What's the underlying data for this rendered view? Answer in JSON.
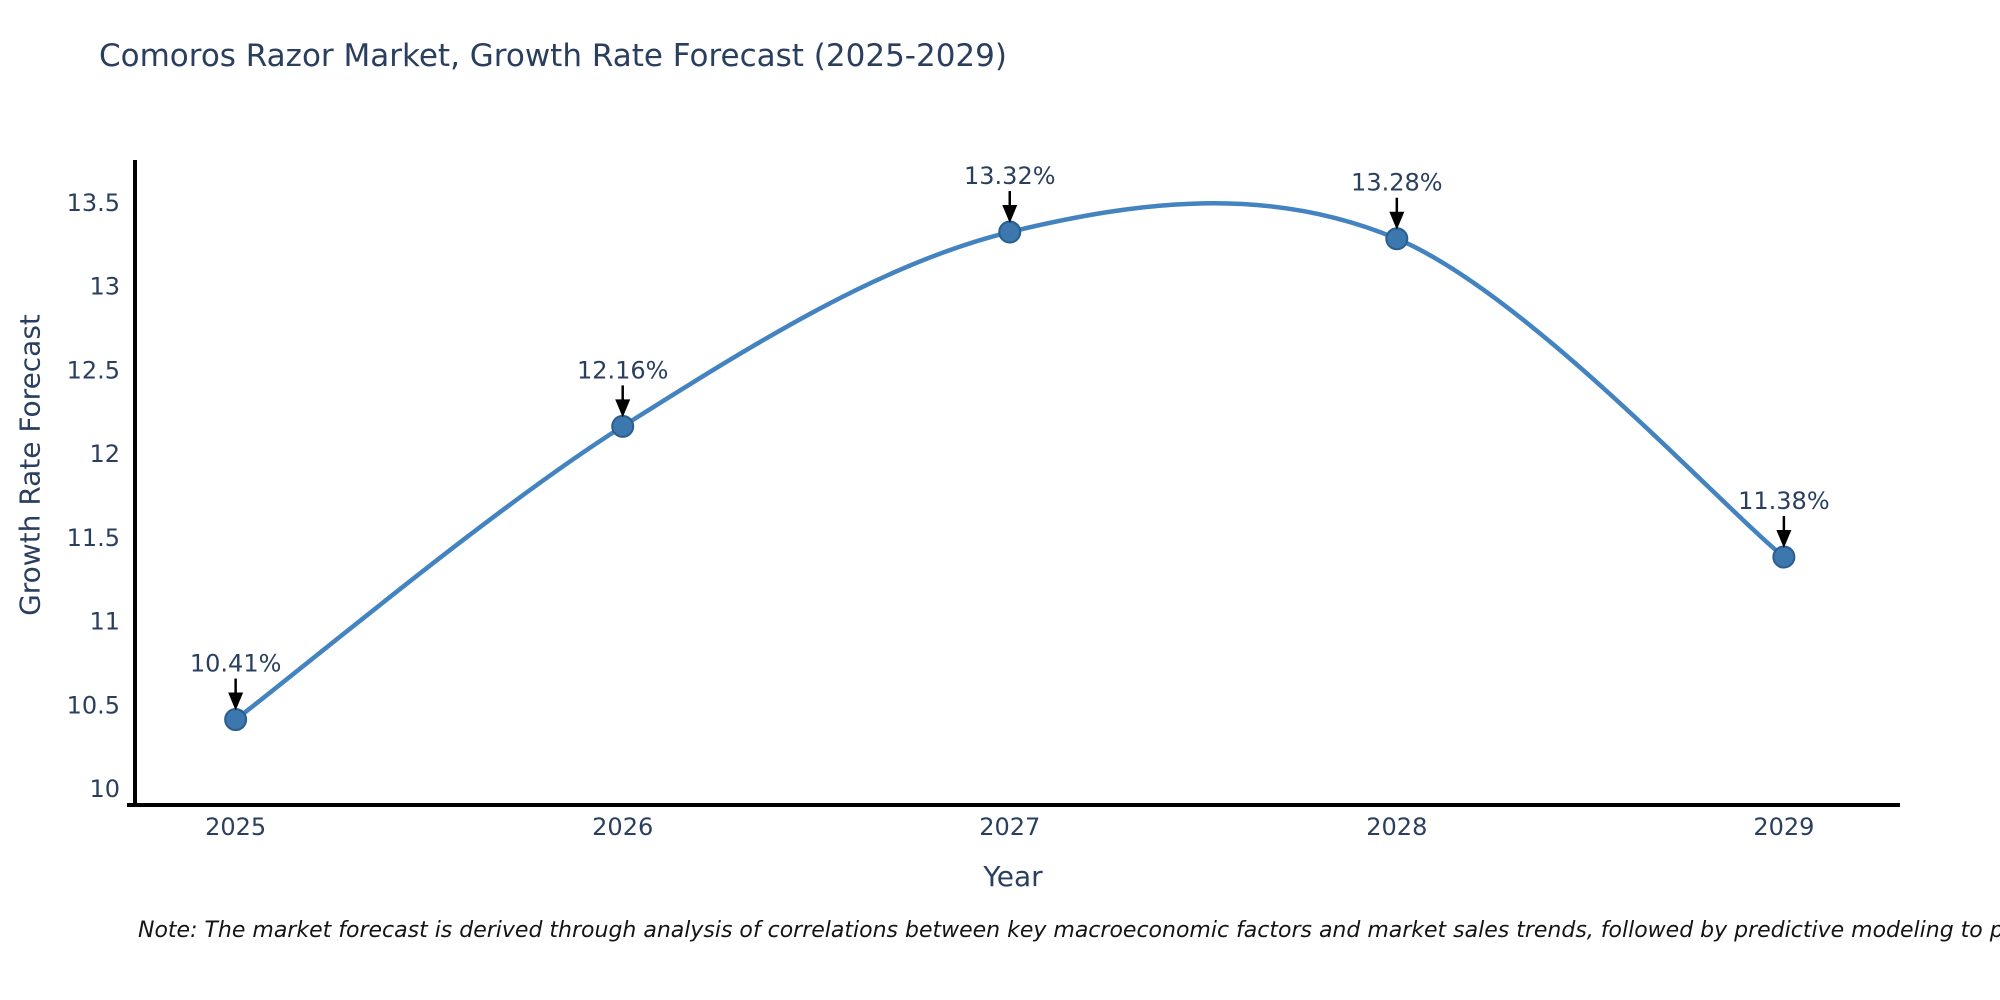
{
  "page": {
    "note": "Note: The market forecast is derived through analysis of correlations between key macroeconomic factors and market sales trends, followed by predictive modeling to project future sales."
  },
  "chart_data": {
    "type": "line",
    "title": "Comoros Razor Market, Growth Rate Forecast (2025-2029)",
    "xlabel": "Year",
    "ylabel": "Growth Rate Forecast",
    "x": [
      2025,
      2026,
      2027,
      2028,
      2029
    ],
    "series": [
      {
        "name": "Growth Rate Forecast",
        "values": [
          10.41,
          12.16,
          13.32,
          13.28,
          11.38
        ],
        "point_labels": [
          "10.41%",
          "12.16%",
          "13.32%",
          "13.28%",
          "11.38%"
        ]
      }
    ],
    "line_shape": "spline",
    "grid": false,
    "legend_position": "none",
    "xticks": [
      "2025",
      "2026",
      "2027",
      "2028",
      "2029"
    ],
    "yticks": [
      "10",
      "10.5",
      "11",
      "11.5",
      "12",
      "12.5",
      "13",
      "13.5"
    ],
    "ytick_values": [
      10,
      10.5,
      11,
      11.5,
      12,
      12.5,
      13,
      13.5
    ],
    "xlim": [
      2024.74,
      2029.3
    ],
    "ylim": [
      9.9,
      13.75
    ],
    "colors": {
      "line": "#4383bf",
      "marker_fill": "#3c77ae",
      "marker_edge": "#2b5d8f",
      "axis_line": "#000000",
      "text": "#2a3f5f",
      "arrow": "#000000",
      "note": "#141414",
      "background": "#ffffff"
    }
  }
}
